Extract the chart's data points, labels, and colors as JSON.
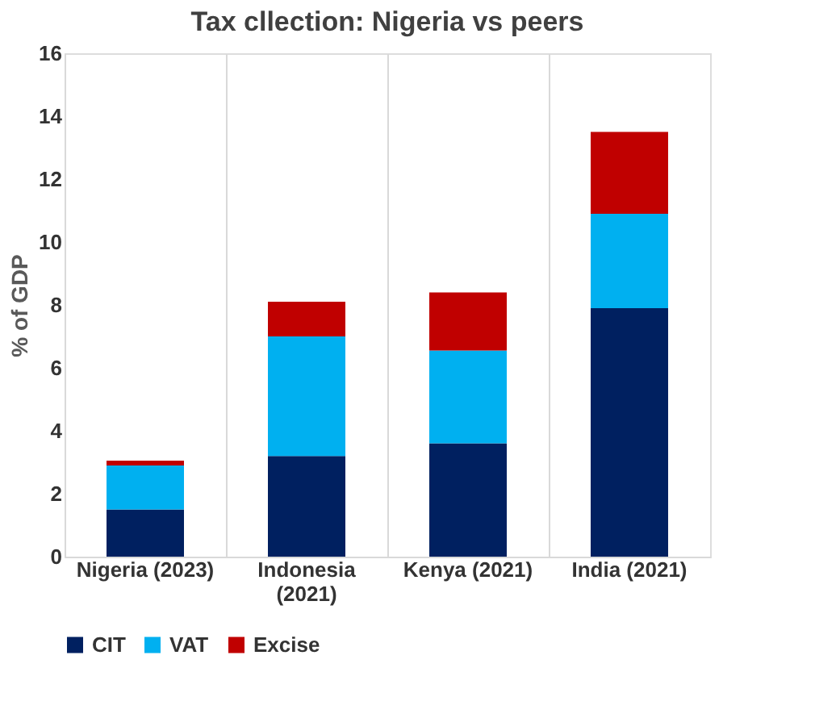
{
  "chart_data": {
    "type": "bar",
    "title": "Tax cllection: Nigeria vs peers",
    "ylabel": "% of GDP",
    "categories": [
      "Nigeria (2023)",
      "Indonesia (2021)",
      "Kenya (2021)",
      "India (2021)"
    ],
    "stacked": true,
    "series": [
      {
        "name": "CIT",
        "color": "#002060",
        "values": [
          1.5,
          3.2,
          3.6,
          7.9
        ]
      },
      {
        "name": "VAT",
        "color": "#00b0f0",
        "values": [
          1.4,
          3.8,
          2.95,
          3.0
        ]
      },
      {
        "name": "Excise",
        "color": "#c00000",
        "values": [
          0.15,
          1.1,
          1.85,
          2.6
        ]
      }
    ],
    "ylim": [
      0,
      16
    ],
    "yticks": [
      0,
      2,
      4,
      6,
      8,
      10,
      12,
      14,
      16
    ],
    "grid": "x",
    "legend": "bottom"
  }
}
